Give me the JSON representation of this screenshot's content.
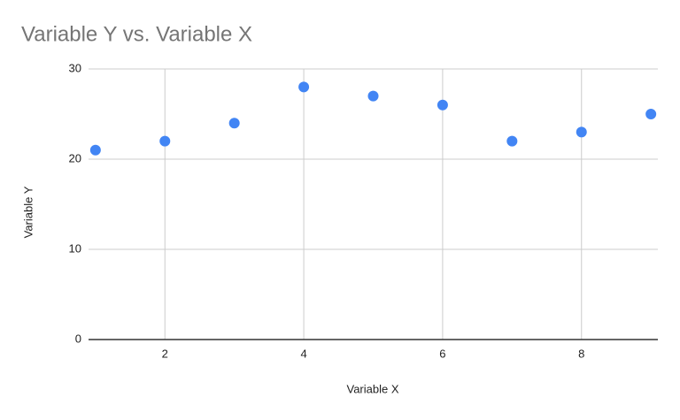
{
  "chart_data": {
    "type": "scatter",
    "title": "Variable Y vs. Variable X",
    "x_label": "Variable X",
    "y_label": "Variable Y",
    "x": [
      1,
      2,
      3,
      4,
      5,
      6,
      7,
      8,
      9
    ],
    "series": [
      {
        "color": "#4285f4",
        "values": [
          21,
          22,
          24,
          28,
          27,
          26,
          22,
          23,
          25
        ]
      }
    ],
    "xlim": [
      0.9,
      9.1
    ],
    "xticks": [
      2,
      4,
      6,
      8
    ],
    "ylim": [
      0,
      30
    ],
    "yticks": [
      0,
      10,
      20,
      30
    ],
    "grid": true
  }
}
